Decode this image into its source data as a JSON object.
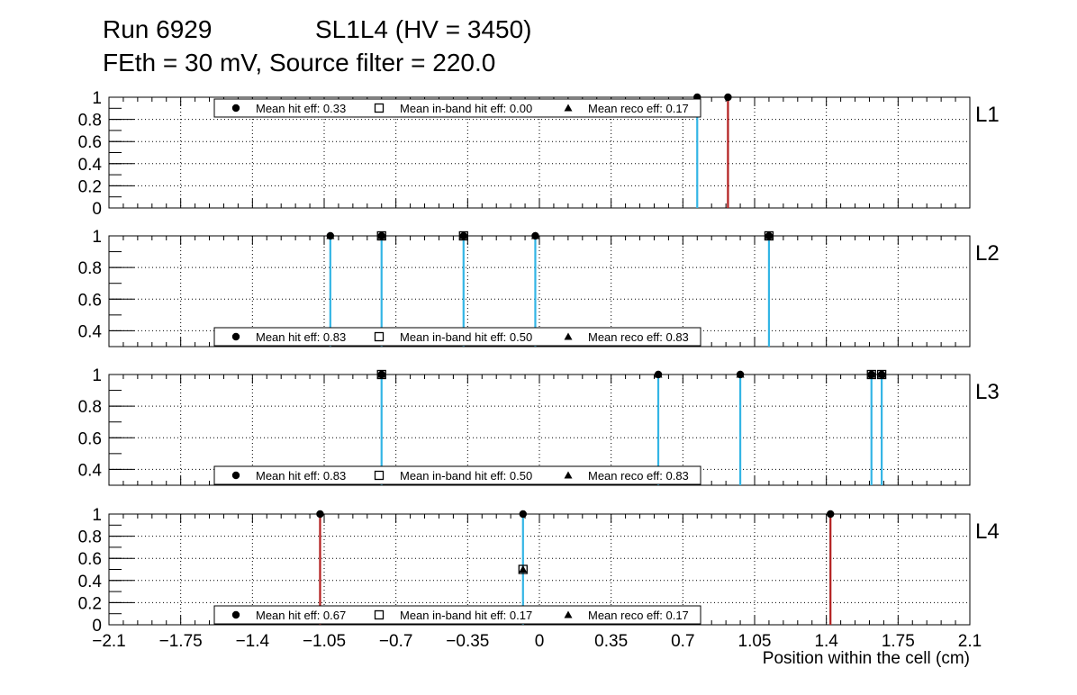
{
  "title": {
    "run": "Run 6929",
    "chamber": "SL1L4 (HV = 3450)",
    "subtitle": "FEth = 30 mV, Source filter = 220.0"
  },
  "x_axis": {
    "label": "Position within the cell (cm)",
    "range": [
      -2.1,
      2.1
    ],
    "tick_labels": [
      "−2.1",
      "−1.75",
      "−1.4",
      "−1.05",
      "−0.7",
      "−0.35",
      "0",
      "0.35",
      "0.7",
      "1.05",
      "1.4",
      "1.75",
      "2.1"
    ],
    "tick_values": [
      -2.1,
      -1.75,
      -1.4,
      -1.05,
      -0.7,
      -0.35,
      0,
      0.35,
      0.7,
      1.05,
      1.4,
      1.75,
      2.1
    ]
  },
  "colors": {
    "blue": "#33b5e5",
    "red": "#b31e1e"
  },
  "chart_data": [
    {
      "type": "scatter",
      "layer": "L1",
      "ylim": [
        0,
        1
      ],
      "y_ticks": [
        0,
        0.2,
        0.4,
        0.6,
        0.8,
        1
      ],
      "y_tick_labels": [
        "0",
        "0.2",
        "0.4",
        "0.6",
        "0.8",
        "1"
      ],
      "legend": {
        "placement": "top",
        "hit": "Mean hit  eff: 0.33",
        "inband": "Mean in-band hit eff: 0.00",
        "reco": "Mean reco eff: 0.17"
      },
      "points": [
        {
          "x": 0.77,
          "hit": 1,
          "inband": 0,
          "reco": 0,
          "color": "blue"
        },
        {
          "x": 0.92,
          "hit": 1,
          "inband": 0,
          "reco": 0,
          "color": "red"
        }
      ]
    },
    {
      "type": "scatter",
      "layer": "L2",
      "ylim": [
        0.3,
        1
      ],
      "y_ticks": [
        0.4,
        0.6,
        0.8,
        1
      ],
      "y_tick_labels": [
        "0.4",
        "0.6",
        "0.8",
        "1"
      ],
      "legend": {
        "placement": "bottom",
        "hit": "Mean hit  eff: 0.83",
        "inband": "Mean in-band hit eff: 0.50",
        "reco": "Mean reco eff: 0.83"
      },
      "points": [
        {
          "x": -1.02,
          "hit": 1,
          "inband": 0,
          "reco": 1,
          "color": "blue"
        },
        {
          "x": -0.77,
          "hit": 1,
          "inband": 1,
          "reco": 1,
          "color": "blue"
        },
        {
          "x": -0.37,
          "hit": 1,
          "inband": 1,
          "reco": 1,
          "color": "blue"
        },
        {
          "x": -0.02,
          "hit": 1,
          "inband": 0,
          "reco": 1,
          "color": "blue"
        },
        {
          "x": 1.12,
          "hit": 1,
          "inband": 1,
          "reco": 1,
          "color": "blue"
        }
      ]
    },
    {
      "type": "scatter",
      "layer": "L3",
      "ylim": [
        0.3,
        1
      ],
      "y_ticks": [
        0.4,
        0.6,
        0.8,
        1
      ],
      "y_tick_labels": [
        "0.4",
        "0.6",
        "0.8",
        "1"
      ],
      "legend": {
        "placement": "bottom",
        "hit": "Mean hit  eff: 0.83",
        "inband": "Mean in-band hit eff: 0.50",
        "reco": "Mean reco eff: 0.83"
      },
      "points": [
        {
          "x": -0.77,
          "hit": 1,
          "inband": 1,
          "reco": 1,
          "color": "blue"
        },
        {
          "x": 0.58,
          "hit": 1,
          "inband": 0,
          "reco": 1,
          "color": "blue"
        },
        {
          "x": 0.98,
          "hit": 1,
          "inband": 0,
          "reco": 1,
          "color": "blue"
        },
        {
          "x": 1.62,
          "hit": 1,
          "inband": 1,
          "reco": 1,
          "color": "blue"
        },
        {
          "x": 1.67,
          "hit": 1,
          "inband": 1,
          "reco": 1,
          "color": "blue"
        }
      ]
    },
    {
      "type": "scatter",
      "layer": "L4",
      "ylim": [
        0,
        1
      ],
      "y_ticks": [
        0,
        0.2,
        0.4,
        0.6,
        0.8,
        1
      ],
      "y_tick_labels": [
        "0",
        "0.2",
        "0.4",
        "0.6",
        "0.8",
        "1"
      ],
      "legend": {
        "placement": "bottom",
        "hit": "Mean hit  eff: 0.67",
        "inband": "Mean in-band hit eff: 0.17",
        "reco": "Mean reco eff: 0.17"
      },
      "points": [
        {
          "x": -1.07,
          "hit": 1,
          "inband": 0,
          "reco": 0,
          "color": "red"
        },
        {
          "x": -0.08,
          "hit": 1,
          "inband": 0.5,
          "reco": 0.5,
          "color": "blue"
        },
        {
          "x": 1.42,
          "hit": 1,
          "inband": 0,
          "reco": 0,
          "color": "red"
        }
      ]
    }
  ]
}
